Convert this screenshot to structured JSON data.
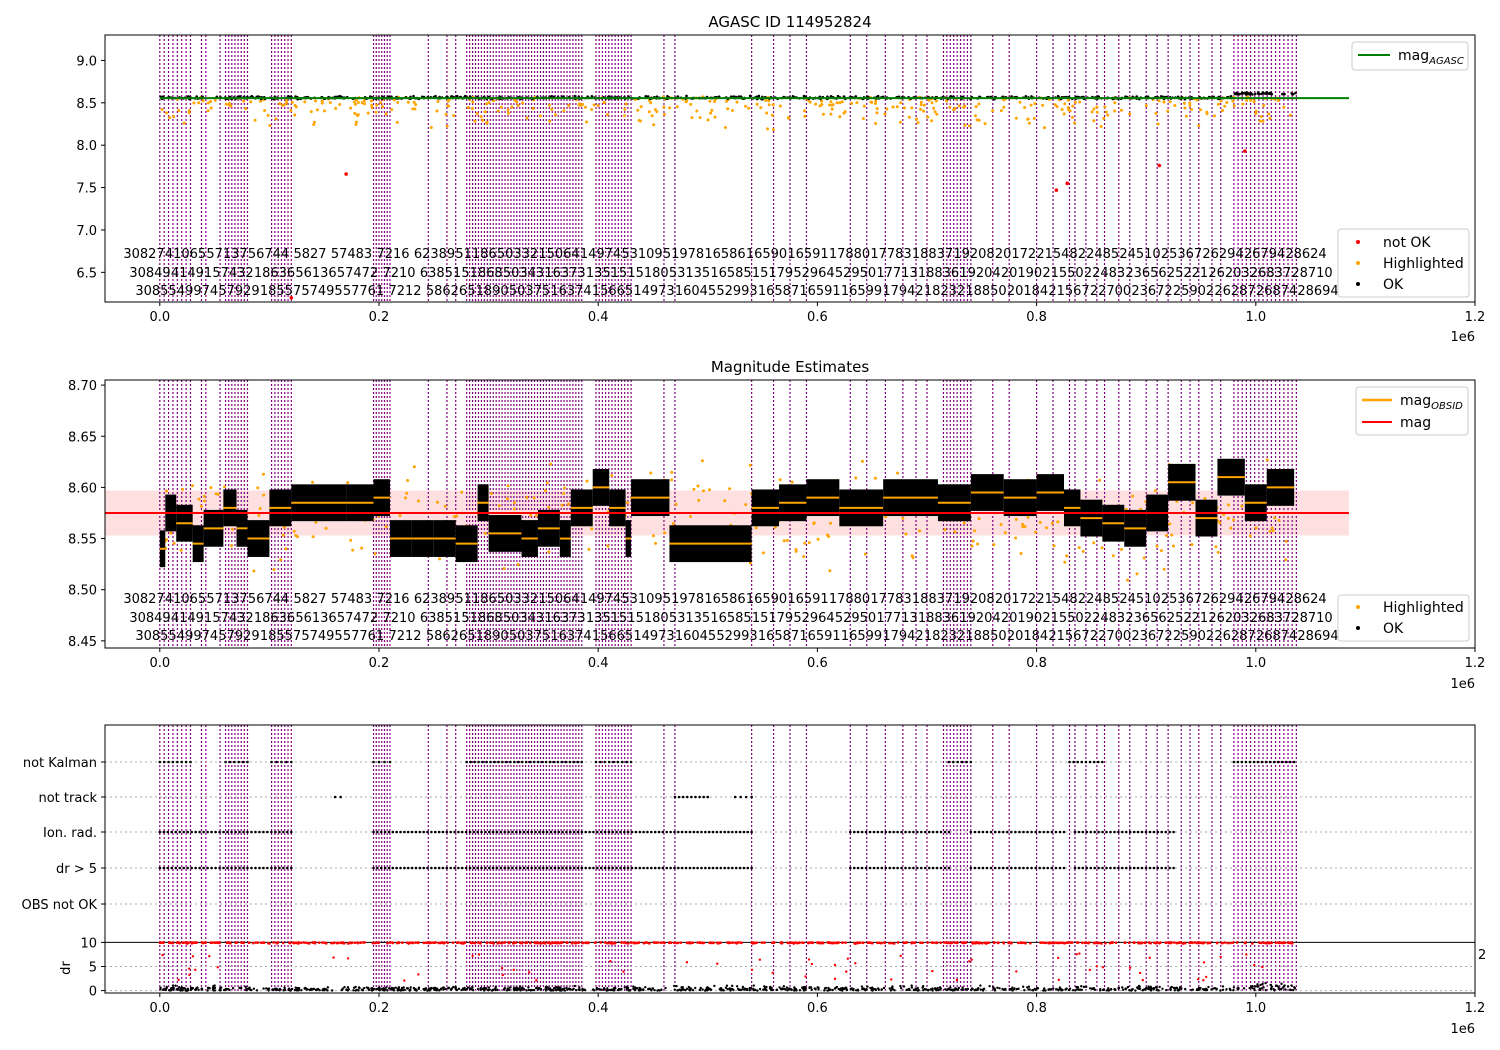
{
  "chart_data": [
    {
      "type": "scatter",
      "title": "AGASC ID 114952824",
      "xlim": [
        -50000,
        1200000
      ],
      "ylim": [
        6.15,
        9.3
      ],
      "x_ticks": [
        0,
        0.2,
        0.4,
        0.6,
        0.8,
        1.0,
        1.2
      ],
      "x_tick_labels": [
        "0.0",
        "0.2",
        "0.4",
        "0.6",
        "0.8",
        "1.0",
        "1.2"
      ],
      "x_offset_label": "1e6",
      "y_ticks": [
        6.5,
        7.0,
        7.5,
        8.0,
        8.5,
        9.0
      ],
      "y_tick_labels": [
        "6.5",
        "7.0",
        "7.5",
        "8.0",
        "8.5",
        "9.0"
      ],
      "series": [
        {
          "name": "mag",
          "subscript": "AGASC",
          "kind": "hline",
          "y": 8.555,
          "x_range": [
            0,
            1085000
          ],
          "color": "#008000"
        },
        {
          "name": "not OK",
          "kind": "points",
          "color": "#ff0000",
          "points": [
            [
              170000,
              7.66
            ],
            [
              120000,
              6.2
            ],
            [
              828000,
              7.55
            ],
            [
              818000,
              7.47
            ],
            [
              912000,
              7.76
            ],
            [
              990000,
              7.93
            ]
          ]
        },
        {
          "name": "Highlighted",
          "kind": "points",
          "color": "#ffa500"
        },
        {
          "name": "OK",
          "kind": "points",
          "color": "#000000"
        }
      ],
      "obsid_rows": [
        [
          "30827",
          "41065",
          "57137",
          "56744",
          "5827",
          "57483",
          "7216",
          "62389",
          "51186",
          "50332",
          "15064",
          "14974",
          "53109",
          "51978",
          "16586",
          "16590",
          "16591",
          "17880",
          "17783",
          "18837",
          "19208",
          "20172",
          "21548",
          "22485",
          "24510",
          "25367",
          "26294",
          "26794",
          "28624"
        ],
        [
          "30849",
          "41491",
          "57432",
          "18636",
          "56136",
          "57472",
          "7210",
          "63851",
          "51868",
          "50343",
          "16373",
          "13515",
          "15180",
          "53135",
          "16585",
          "15179",
          "52964",
          "52950",
          "17713",
          "18836",
          "19204",
          "20190",
          "21550",
          "22483",
          "23656",
          "25221",
          "26203",
          "26837",
          "28710"
        ],
        [
          "30855",
          "49974",
          "57929",
          "18557",
          "57495",
          "57761",
          "7212",
          "58626",
          "51890",
          "50375",
          "16374",
          "15665",
          "14973",
          "16045",
          "52993",
          "16587",
          "16591",
          "16599",
          "17942",
          "18232",
          "18850",
          "20184",
          "21567",
          "22700",
          "23672",
          "25902",
          "26287",
          "26874",
          "28694"
        ]
      ],
      "legend": [
        "not OK",
        "Highlighted",
        "OK"
      ],
      "legend_position": "right"
    },
    {
      "type": "scatter",
      "title": "Magnitude Estimates",
      "xlim": [
        -50000,
        1200000
      ],
      "ylim": [
        8.443,
        8.705
      ],
      "x_ticks": [
        0,
        0.2,
        0.4,
        0.6,
        0.8,
        1.0,
        1.2
      ],
      "x_tick_labels": [
        "0.0",
        "0.2",
        "0.4",
        "0.6",
        "0.8",
        "1.0",
        "1.2"
      ],
      "x_offset_label": "1e6",
      "y_ticks": [
        8.45,
        8.5,
        8.55,
        8.6,
        8.65,
        8.7
      ],
      "y_tick_labels": [
        "8.45",
        "8.50",
        "8.55",
        "8.60",
        "8.65",
        "8.70"
      ],
      "mag_band": [
        8.553,
        8.597
      ],
      "series": [
        {
          "name": "mag",
          "subscript": "OBSID",
          "kind": "segments",
          "color": "#ffa500"
        },
        {
          "name": "mag",
          "kind": "hline",
          "y": 8.575,
          "x_range": [
            -50000,
            1085000
          ],
          "color": "#ff0000"
        },
        {
          "name": "Highlighted",
          "kind": "points",
          "color": "#ffa500"
        },
        {
          "name": "OK",
          "kind": "points",
          "color": "#000000"
        }
      ],
      "segments": [
        [
          0,
          5000,
          8.54
        ],
        [
          5000,
          15000,
          8.575
        ],
        [
          15000,
          30000,
          8.565
        ],
        [
          30000,
          40000,
          8.545
        ],
        [
          40000,
          58000,
          8.56
        ],
        [
          58000,
          70000,
          8.58
        ],
        [
          70000,
          80000,
          8.56
        ],
        [
          80000,
          100000,
          8.55
        ],
        [
          100000,
          120000,
          8.58
        ],
        [
          120000,
          170000,
          8.585
        ],
        [
          170000,
          195000,
          8.585
        ],
        [
          195000,
          210000,
          8.59
        ],
        [
          210000,
          230000,
          8.55
        ],
        [
          230000,
          250000,
          8.55
        ],
        [
          250000,
          270000,
          8.55
        ],
        [
          270000,
          290000,
          8.545
        ],
        [
          290000,
          300000,
          8.585
        ],
        [
          300000,
          330000,
          8.555
        ],
        [
          330000,
          345000,
          8.55
        ],
        [
          345000,
          365000,
          8.56
        ],
        [
          365000,
          375000,
          8.55
        ],
        [
          375000,
          395000,
          8.58
        ],
        [
          395000,
          410000,
          8.6
        ],
        [
          410000,
          425000,
          8.58
        ],
        [
          425000,
          430000,
          8.55
        ],
        [
          430000,
          465000,
          8.59
        ],
        [
          465000,
          540000,
          8.545
        ],
        [
          540000,
          565000,
          8.58
        ],
        [
          565000,
          590000,
          8.585
        ],
        [
          590000,
          620000,
          8.59
        ],
        [
          620000,
          660000,
          8.58
        ],
        [
          660000,
          710000,
          8.59
        ],
        [
          710000,
          740000,
          8.585
        ],
        [
          740000,
          770000,
          8.595
        ],
        [
          770000,
          800000,
          8.59
        ],
        [
          800000,
          825000,
          8.595
        ],
        [
          825000,
          840000,
          8.58
        ],
        [
          840000,
          860000,
          8.57
        ],
        [
          860000,
          880000,
          8.565
        ],
        [
          880000,
          900000,
          8.56
        ],
        [
          900000,
          920000,
          8.575
        ],
        [
          920000,
          945000,
          8.605
        ],
        [
          945000,
          965000,
          8.57
        ],
        [
          965000,
          990000,
          8.61
        ],
        [
          990000,
          1010000,
          8.585
        ],
        [
          1010000,
          1035000,
          8.6
        ]
      ],
      "legend": [
        "mag_OBSID",
        "mag",
        "Highlighted",
        "OK"
      ],
      "legend_position": "right"
    },
    {
      "type": "scatter",
      "title": "",
      "categories": [
        "not Kalman",
        "not track",
        "Ion. rad.",
        "dr > 5",
        "OBS not OK"
      ],
      "xlim": [
        -50000,
        1200000
      ],
      "x_ticks": [
        0,
        0.2,
        0.4,
        0.6,
        0.8,
        1.0,
        1.2
      ],
      "x_tick_labels": [
        "0.0",
        "0.2",
        "0.4",
        "0.6",
        "0.8",
        "1.0",
        "1.2"
      ],
      "x_offset_label": "1e6",
      "dr_axis": {
        "ylabel": "dr",
        "ylim": [
          -0.5,
          10.5
        ],
        "y_ticks": [
          0,
          5,
          10
        ],
        "y_tick_labels": [
          "0",
          "5",
          "10"
        ],
        "right_label": "2"
      }
    }
  ]
}
